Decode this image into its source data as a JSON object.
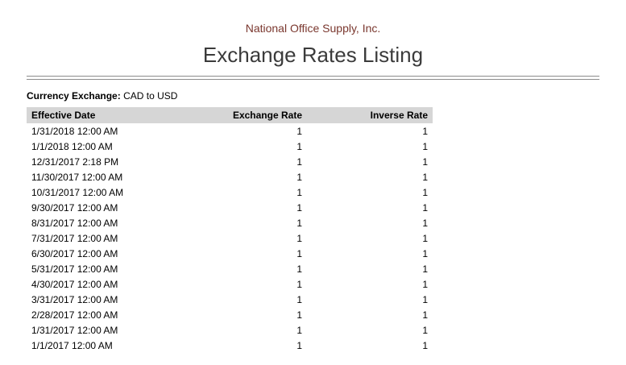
{
  "report": {
    "company_name": "National Office Supply, Inc.",
    "title": "Exchange Rates Listing",
    "filter": {
      "label": "Currency Exchange:",
      "value": "CAD to USD"
    }
  },
  "table": {
    "headers": [
      "Effective Date",
      "Exchange Rate",
      "Inverse Rate"
    ],
    "rows": [
      [
        "1/31/2018 12:00 AM",
        "1",
        "1"
      ],
      [
        "1/1/2018 12:00 AM",
        "1",
        "1"
      ],
      [
        "12/31/2017 2:18 PM",
        "1",
        "1"
      ],
      [
        "11/30/2017 12:00 AM",
        "1",
        "1"
      ],
      [
        "10/31/2017 12:00 AM",
        "1",
        "1"
      ],
      [
        "9/30/2017 12:00 AM",
        "1",
        "1"
      ],
      [
        "8/31/2017 12:00 AM",
        "1",
        "1"
      ],
      [
        "7/31/2017 12:00 AM",
        "1",
        "1"
      ],
      [
        "6/30/2017 12:00 AM",
        "1",
        "1"
      ],
      [
        "5/31/2017 12:00 AM",
        "1",
        "1"
      ],
      [
        "4/30/2017 12:00 AM",
        "1",
        "1"
      ],
      [
        "3/31/2017 12:00 AM",
        "1",
        "1"
      ],
      [
        "2/28/2017 12:00 AM",
        "1",
        "1"
      ],
      [
        "1/31/2017 12:00 AM",
        "1",
        "1"
      ],
      [
        "1/1/2017 12:00 AM",
        "1",
        "1"
      ]
    ]
  },
  "colors": {
    "company_text": "#7a372e",
    "title_text": "#3b3b3b",
    "table_header_bg": "#d6d6d6",
    "rule_line": "#8c8c8c"
  }
}
